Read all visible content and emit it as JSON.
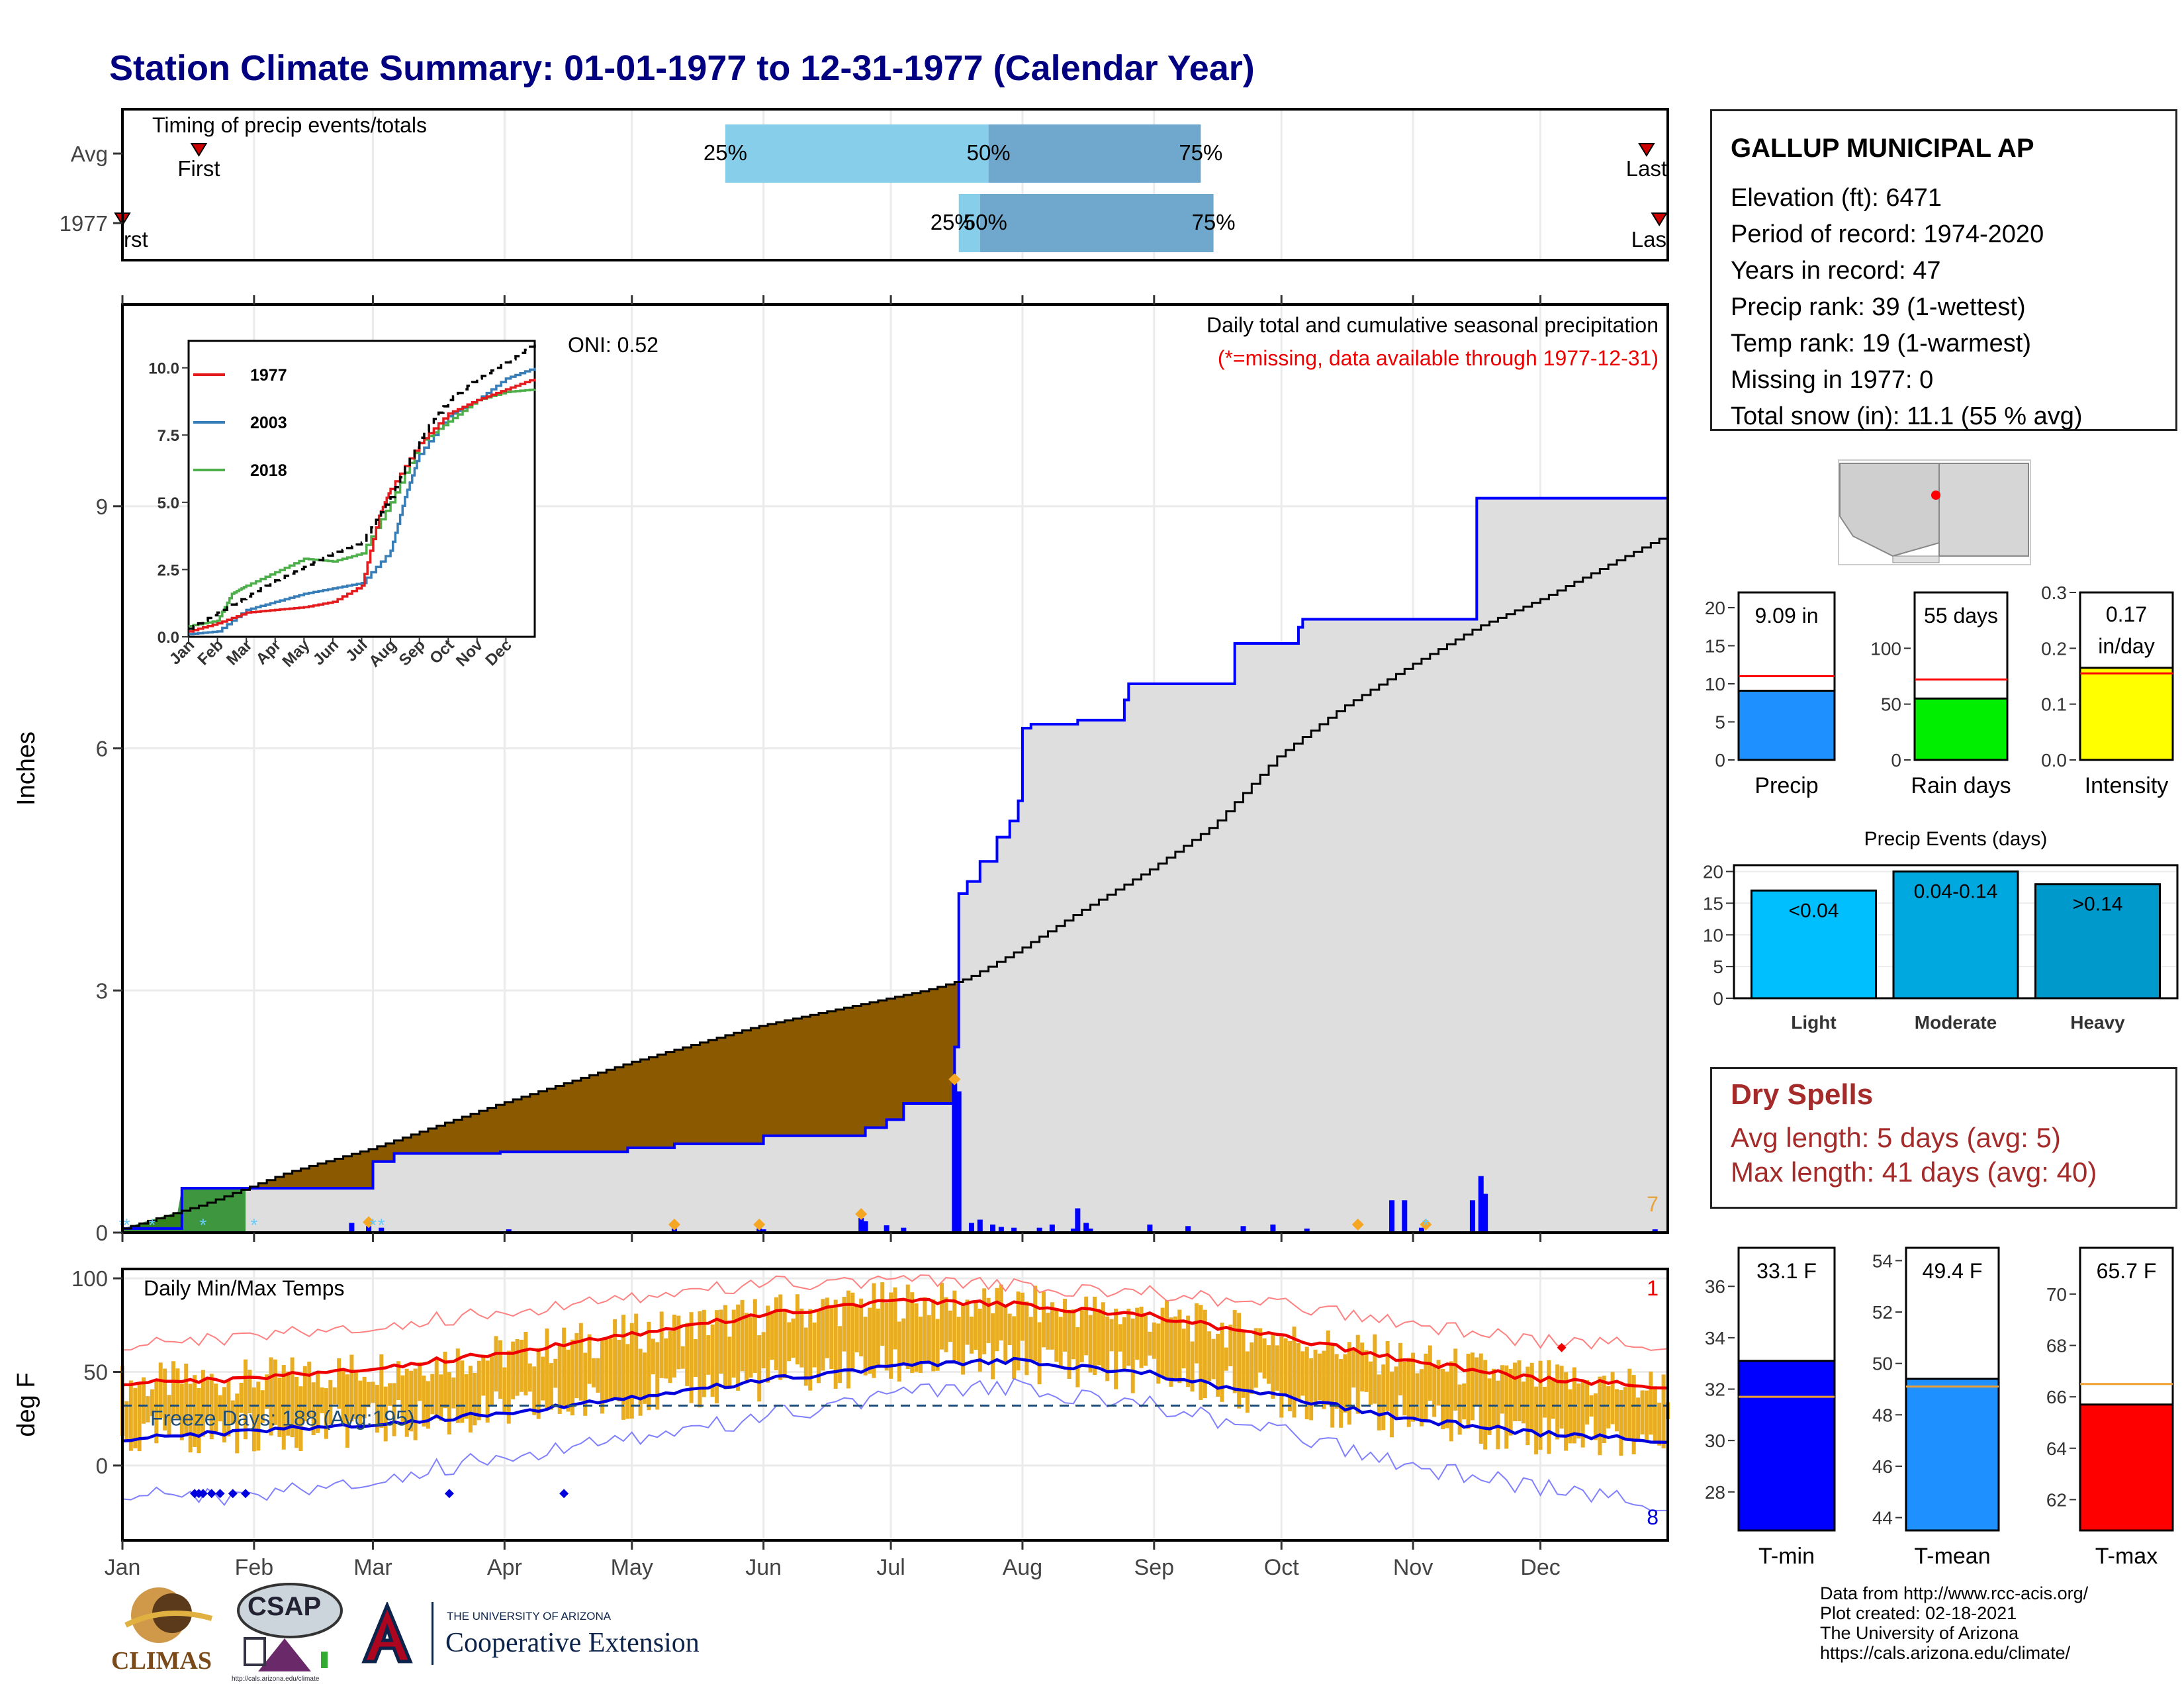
{
  "title": "Station Climate Summary: 01-01-1977 to 12-31-1977 (Calendar Year)",
  "timing": {
    "label": "Timing of precip events/totals",
    "rows": [
      "Avg",
      "1977"
    ],
    "marker_labels": {
      "first": "First",
      "last": "Last",
      "first_1977": "rst",
      "last_1977": "Las"
    },
    "pct_labels": [
      "25%",
      "50%",
      "75%"
    ],
    "pct_labels_1977": [
      "25%",
      "50%",
      "75%"
    ],
    "avg_quartiles_doy": [
      143,
      205,
      255
    ],
    "obs_quartiles_doy": [
      198,
      203,
      258
    ],
    "first_last_avg_doy": [
      6,
      360
    ],
    "first_last_obs_doy": [
      1,
      363
    ]
  },
  "precip_panel": {
    "ylabel": "Inches",
    "yticks": [
      "0",
      "3",
      "6",
      "9"
    ],
    "ylim": [
      0,
      11.5
    ],
    "caption": "Daily total and cumulative seasonal precipitation",
    "missing_note": "(*=missing, data available through 1977-12-31)",
    "oni": "ONI: 0.52",
    "corner_count": "7",
    "avg_cumulative": {
      "doy": [
        1,
        20,
        40,
        60,
        90,
        120,
        150,
        181,
        190,
        200,
        212,
        227,
        243,
        258,
        273,
        288,
        305,
        320,
        335,
        350,
        365
      ],
      "in": [
        0.05,
        0.35,
        0.75,
        1.05,
        1.6,
        2.1,
        2.55,
        2.9,
        3.0,
        3.15,
        3.5,
        4.0,
        4.5,
        5.05,
        5.9,
        6.5,
        7.05,
        7.5,
        7.85,
        8.25,
        8.65
      ]
    },
    "obs_cumulative": {
      "doy": [
        1,
        15,
        22,
        59,
        60,
        65,
        90,
        120,
        130,
        131,
        150,
        152,
        175,
        176,
        181,
        185,
        197,
        198,
        200,
        203,
        207,
        210,
        212,
        213,
        215,
        226,
        237,
        238,
        262,
        263,
        272,
        278,
        279,
        305,
        320,
        365
      ],
      "in": [
        0.05,
        0.55,
        0.55,
        0.55,
        0.88,
        0.98,
        1.0,
        1.05,
        1.05,
        1.1,
        1.1,
        1.2,
        1.2,
        1.3,
        1.4,
        1.6,
        2.3,
        4.2,
        4.35,
        4.6,
        4.9,
        5.1,
        5.35,
        6.25,
        6.3,
        6.35,
        6.6,
        6.8,
        6.8,
        7.3,
        7.3,
        7.5,
        7.6,
        7.6,
        9.1,
        9.1
      ]
    },
    "daily_bars": {
      "doy": [
        55,
        59,
        62,
        92,
        131,
        151,
        152,
        175,
        176,
        181,
        185,
        197,
        198,
        201,
        203,
        206,
        208,
        211,
        217,
        220,
        225,
        226,
        228,
        229,
        243,
        252,
        265,
        272,
        280,
        300,
        303,
        307,
        319,
        321,
        322,
        362
      ],
      "in": [
        0.12,
        0.08,
        0.06,
        0.04,
        0.05,
        0.05,
        0.04,
        0.18,
        0.14,
        0.09,
        0.06,
        1.85,
        1.75,
        0.12,
        0.16,
        0.1,
        0.07,
        0.06,
        0.06,
        0.1,
        0.05,
        0.3,
        0.12,
        0.05,
        0.1,
        0.08,
        0.08,
        0.1,
        0.05,
        0.4,
        0.4,
        0.06,
        0.4,
        0.7,
        0.48,
        0.04
      ]
    },
    "snow_days_doy": [
      1,
      2,
      8,
      20,
      32,
      60,
      62,
      308
    ],
    "orange_events_doy": [
      59,
      131,
      151,
      175,
      197,
      292,
      308
    ],
    "x_months": [
      "Jan",
      "Feb",
      "Mar",
      "Apr",
      "May",
      "Jun",
      "Jul",
      "Aug",
      "Sep",
      "Oct",
      "Nov",
      "Dec"
    ]
  },
  "inset": {
    "yticks": [
      "0.0",
      "2.5",
      "5.0",
      "7.5",
      "10.0"
    ],
    "xlabels": [
      "Jan",
      "Feb",
      "Mar",
      "Apr",
      "May",
      "Jun",
      "Jul",
      "Aug",
      "Sep",
      "Oct",
      "Nov",
      "Dec"
    ],
    "legend": [
      {
        "name": "1977",
        "color": "#e41a1c"
      },
      {
        "name": "2003",
        "color": "#377eb8"
      },
      {
        "name": "2018",
        "color": "#4daf4a"
      }
    ],
    "avg": {
      "m": [
        0,
        1,
        2,
        3,
        4,
        5,
        6,
        7,
        8,
        9,
        10,
        11,
        12
      ],
      "v": [
        0.3,
        0.9,
        1.5,
        2.1,
        2.6,
        3.1,
        3.5,
        5.2,
        7.4,
        8.8,
        9.6,
        10.2,
        10.9
      ]
    },
    "s1977": {
      "m": [
        0,
        1,
        2,
        3,
        4,
        5,
        6,
        6.6,
        7,
        8,
        9,
        10,
        11,
        12
      ],
      "v": [
        0.2,
        0.5,
        0.9,
        1.0,
        1.1,
        1.3,
        1.9,
        4.5,
        5.5,
        7.2,
        8.3,
        8.8,
        9.2,
        9.6
      ]
    },
    "s2003": {
      "m": [
        0,
        1,
        2,
        3,
        4,
        5,
        6,
        7,
        7.5,
        8,
        9,
        10,
        11,
        12
      ],
      "v": [
        0.1,
        0.2,
        1.0,
        1.3,
        1.6,
        1.8,
        2.0,
        3.2,
        5.2,
        6.8,
        8.2,
        8.8,
        9.6,
        10.0
      ]
    },
    "s2018": {
      "m": [
        0,
        1,
        1.5,
        2,
        3,
        4,
        5,
        6,
        7,
        8,
        9,
        10,
        11,
        12
      ],
      "v": [
        0.4,
        0.6,
        1.6,
        1.9,
        2.4,
        2.9,
        2.8,
        3.1,
        5.0,
        7.2,
        8.0,
        8.8,
        9.1,
        9.2
      ]
    }
  },
  "temp_panel": {
    "ylabel": "deg F",
    "yticks": [
      "0",
      "50",
      "100"
    ],
    "ylim": [
      -40,
      105
    ],
    "label": "Daily Min/Max Temps",
    "freeze": "Freeze Days: 188 (Avg:195)",
    "freeze_line": 32,
    "count_top": "1",
    "count_bottom": "8",
    "avg_max": {
      "doy": [
        1,
        30,
        60,
        90,
        120,
        150,
        182,
        212,
        243,
        273,
        304,
        335,
        365
      ],
      "f": [
        44,
        46,
        52,
        60,
        70,
        80,
        88,
        86,
        80,
        69,
        56,
        46,
        42
      ]
    },
    "avg_min": {
      "doy": [
        1,
        30,
        60,
        90,
        120,
        150,
        182,
        212,
        243,
        273,
        304,
        335,
        365
      ],
      "f": [
        14,
        18,
        22,
        28,
        36,
        45,
        53,
        56,
        49,
        37,
        25,
        17,
        13
      ]
    },
    "rec_max": {
      "doy": [
        1,
        30,
        60,
        90,
        120,
        150,
        182,
        212,
        243,
        273,
        304,
        335,
        365
      ],
      "f": [
        64,
        68,
        74,
        82,
        90,
        97,
        99,
        96,
        92,
        86,
        76,
        66,
        64
      ]
    },
    "rec_min": {
      "doy": [
        1,
        30,
        60,
        90,
        120,
        150,
        182,
        212,
        243,
        273,
        304,
        335,
        365
      ],
      "f": [
        -15,
        -18,
        -8,
        5,
        15,
        25,
        38,
        42,
        32,
        18,
        0,
        -12,
        -22
      ]
    }
  },
  "side_panels": {
    "precip": {
      "value_label": "9.09 in",
      "xlabel": "Precip",
      "value": 9.09,
      "avg": 11.0,
      "ylim": [
        0,
        22
      ],
      "yticks": [
        "0",
        "5",
        "10",
        "15",
        "20"
      ],
      "color": "#1e90ff"
    },
    "rain_days": {
      "value_label": "55 days",
      "xlabel": "Rain days",
      "value": 55,
      "avg": 72,
      "ylim": [
        0,
        150
      ],
      "yticks": [
        "0",
        "50",
        "100"
      ],
      "color": "#00ee00"
    },
    "intensity": {
      "value_label1": "0.17",
      "value_label2": "in/day",
      "xlabel": "Intensity",
      "value": 0.165,
      "avg": 0.155,
      "ylim": [
        0,
        0.3
      ],
      "yticks": [
        "0.0",
        "0.1",
        "0.2",
        "0.3"
      ],
      "color": "#ffff00"
    },
    "events": {
      "title": "Precip Events (days)",
      "yticks": [
        "0",
        "5",
        "10",
        "15",
        "20"
      ],
      "ylim": [
        0,
        20
      ],
      "bars": [
        {
          "label": "<0.04",
          "cat": "Light",
          "value": 17,
          "color": "#00bfff"
        },
        {
          "label": "0.04-0.14",
          "cat": "Moderate",
          "value": 20,
          "color": "#00a8e0"
        },
        {
          "label": ">0.14",
          "cat": "Heavy",
          "value": 18,
          "color": "#0099cc"
        }
      ]
    },
    "tmin": {
      "value_label": "33.1 F",
      "xlabel": "T-min",
      "value": 33.1,
      "avg": 31.7,
      "ylim": [
        26.5,
        37.5
      ],
      "yticks": [
        "28",
        "30",
        "32",
        "34",
        "36"
      ],
      "color": "#0000ff"
    },
    "tmean": {
      "value_label": "49.4 F",
      "xlabel": "T-mean",
      "value": 49.4,
      "avg": 49.1,
      "ylim": [
        43.5,
        54.5
      ],
      "yticks": [
        "44",
        "46",
        "48",
        "50",
        "52",
        "54"
      ],
      "color": "#1e90ff"
    },
    "tmax": {
      "value_label": "65.7 F",
      "xlabel": "T-max",
      "value": 65.7,
      "avg": 66.5,
      "ylim": [
        60.8,
        71.8
      ],
      "yticks": [
        "62",
        "64",
        "66",
        "68",
        "70"
      ],
      "color": "#ff0000"
    }
  },
  "station": {
    "name": "GALLUP MUNICIPAL AP",
    "elevation": "Elevation (ft): 6471",
    "period": "Period of record: 1974-2020",
    "years": "Years in record: 47",
    "precip_rank": "Precip rank: 39 (1-wettest)",
    "temp_rank": "Temp rank: 19 (1-warmest)",
    "missing": "Missing in 1977: 0",
    "snow": "Total snow (in): 11.1 (55 % avg)"
  },
  "dry_spells": {
    "title": "Dry Spells",
    "avg": "Avg length: 5 days (avg: 5)",
    "max": "Max length: 41 days (avg: 40)"
  },
  "credits": [
    "Data from http://www.rcc-acis.org/",
    "Plot created: 02-18-2021",
    "The University of Arizona",
    "https://cals.arizona.edu/climate/"
  ],
  "logos": {
    "climas": "CLIMAS",
    "csap": "CSAP",
    "csap_url": "http://cals.arizona.edu/climate",
    "ua_small": "THE UNIVERSITY OF ARIZONA",
    "ua_big": "Cooperative Extension"
  }
}
